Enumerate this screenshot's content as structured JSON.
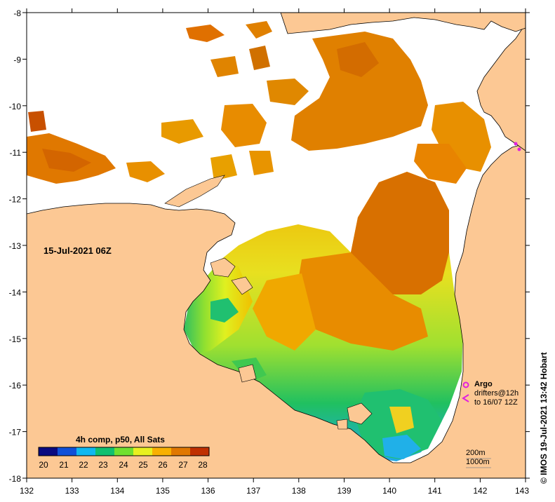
{
  "map": {
    "timestamp": "15-Jul-2021 06Z",
    "lon_ticks": [
      "132",
      "133",
      "134",
      "135",
      "136",
      "137",
      "138",
      "139",
      "140",
      "141",
      "142",
      "143"
    ],
    "lat_ticks": [
      "-8",
      "-9",
      "-10",
      "-11",
      "-12",
      "-13",
      "-14",
      "-15",
      "-16",
      "-17",
      "-18"
    ],
    "land_color": "#fcc894",
    "ocean_nodata_color": "#ffffff"
  },
  "colorbar": {
    "title": "4h comp, p50, All Sats",
    "ticks": [
      "20",
      "21",
      "22",
      "23",
      "24",
      "25",
      "26",
      "27",
      "28"
    ],
    "colors": [
      "#0a0a80",
      "#1050d8",
      "#10b8f0",
      "#10c070",
      "#70e030",
      "#e8f020",
      "#f8b000",
      "#e07800",
      "#c03000"
    ]
  },
  "legend": {
    "argo_label": "Argo",
    "drifters_label": "drifters@12h",
    "drifters_to": "to 16/07 12Z",
    "depth_200": "200m",
    "depth_1000": "1000m",
    "argo_color": "#e020e0"
  },
  "credit": "© IMOS 19-Jul-2021 13:42 Hobart"
}
